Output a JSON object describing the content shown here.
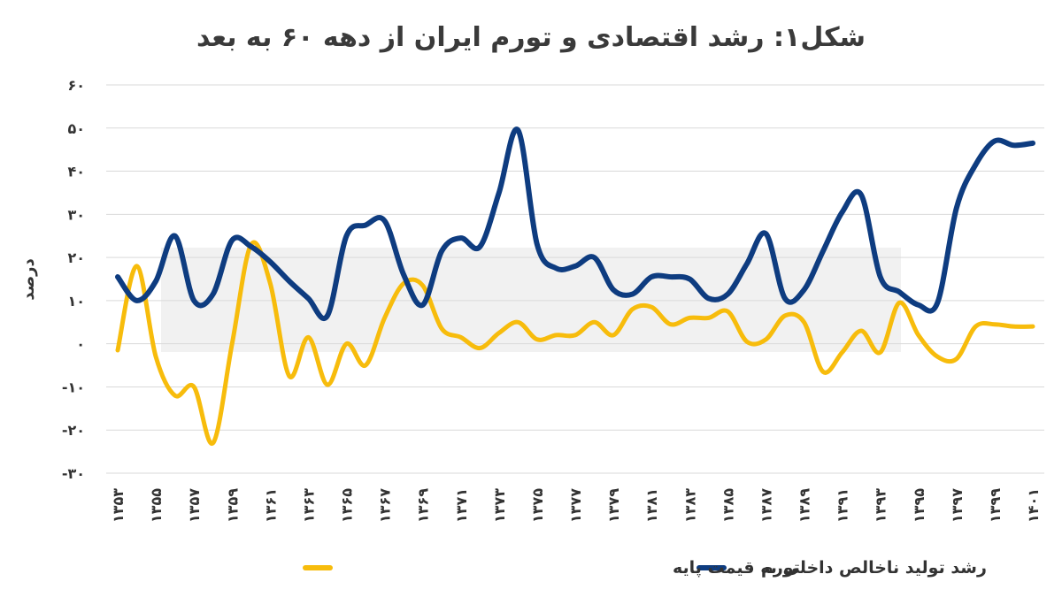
{
  "chart_data": {
    "type": "line",
    "title": "شکل۱: رشد اقتصادی و تورم ایران از دهه ۶۰ به بعد",
    "xlabel": "",
    "ylabel": "درصد",
    "ylim": [
      -30,
      60
    ],
    "y_ticks": [
      -30,
      -20,
      -10,
      0,
      10,
      20,
      30,
      40,
      50,
      60
    ],
    "y_tick_labels": [
      "-۳۰",
      "-۲۰",
      "-۱۰",
      "۰",
      "۱۰",
      "۲۰",
      "۳۰",
      "۴۰",
      "۵۰",
      "۶۰"
    ],
    "x": [
      1353,
      1354,
      1355,
      1356,
      1357,
      1358,
      1359,
      1360,
      1361,
      1362,
      1363,
      1364,
      1365,
      1366,
      1367,
      1368,
      1369,
      1370,
      1371,
      1372,
      1373,
      1374,
      1375,
      1376,
      1377,
      1378,
      1379,
      1380,
      1381,
      1382,
      1383,
      1384,
      1385,
      1386,
      1387,
      1388,
      1389,
      1390,
      1391,
      1392,
      1393,
      1394,
      1395,
      1396,
      1397,
      1398,
      1399,
      1400,
      1401
    ],
    "x_tick_values": [
      1353,
      1355,
      1357,
      1359,
      1361,
      1363,
      1365,
      1367,
      1369,
      1371,
      1373,
      1375,
      1377,
      1379,
      1381,
      1383,
      1385,
      1387,
      1389,
      1391,
      1393,
      1395,
      1397,
      1399,
      1401
    ],
    "x_tick_labels": [
      "۱۳۵۳",
      "۱۳۵۵",
      "۱۳۵۷",
      "۱۳۵۹",
      "۱۳۶۱",
      "۱۳۶۳",
      "۱۳۶۵",
      "۱۳۶۷",
      "۱۳۶۹",
      "۱۳۷۱",
      "۱۳۷۳",
      "۱۳۷۵",
      "۱۳۷۷",
      "۱۳۷۹",
      "۱۳۸۱",
      "۱۳۸۳",
      "۱۳۸۵",
      "۱۳۸۷",
      "۱۳۸۹",
      "۱۳۹۱",
      "۱۳۹۳",
      "۱۳۹۵",
      "۱۳۹۷",
      "۱۳۹۹",
      "۱۴۰۱"
    ],
    "grid": true,
    "legend_position": "bottom",
    "series": [
      {
        "name": "تورم",
        "color": "#0e3c80",
        "values": [
          15.5,
          10,
          14.5,
          25,
          10,
          11.5,
          24,
          22.5,
          19,
          14.5,
          10.5,
          6.5,
          25,
          27.5,
          28.5,
          16,
          9,
          21.5,
          24.5,
          22.5,
          35,
          49.5,
          23,
          17.5,
          18,
          20,
          12.5,
          11.5,
          15.5,
          15.5,
          15,
          10.5,
          11.5,
          18.5,
          25.5,
          10.5,
          12.5,
          21.5,
          30.5,
          34.5,
          15.5,
          12,
          9,
          9.5,
          31.5,
          41.5,
          47,
          46,
          46.5
        ]
      },
      {
        "name": "رشد تولید ناخالص داخلی به قیمت پایه",
        "color": "#f7bc0c",
        "values": [
          -1.5,
          18,
          -3,
          -12,
          -10,
          -23,
          0,
          23,
          14,
          -7.5,
          1.5,
          -9.5,
          0,
          -5,
          6,
          14,
          13.5,
          3.5,
          1.5,
          -1,
          2.5,
          5,
          1,
          2,
          2,
          5,
          2,
          8,
          8.5,
          4.5,
          6,
          6,
          7.5,
          0.5,
          1,
          6.5,
          5,
          -6.5,
          -2,
          3,
          -2,
          9.5,
          2,
          -3,
          -3.5,
          4,
          4.5,
          4,
          4
        ]
      }
    ]
  }
}
